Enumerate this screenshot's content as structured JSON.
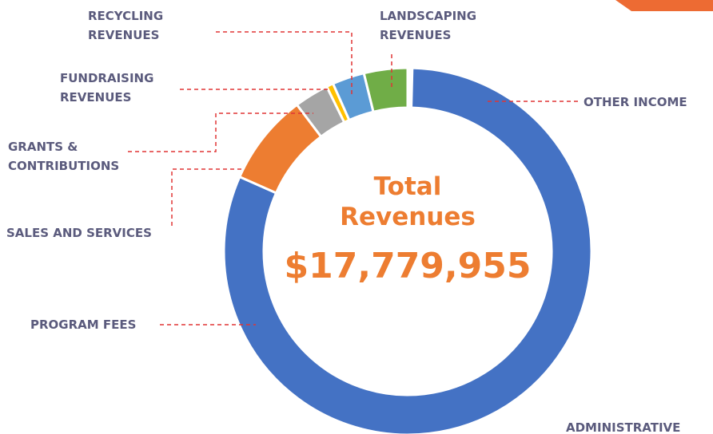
{
  "chart_data": {
    "type": "donut",
    "center_title": "Total Revenues",
    "center_value": "$17,779,955",
    "categories": [
      "OTHER INCOME",
      "ADMINISTRATIVE",
      "PROGRAM FEES",
      "SALES AND SERVICES",
      "GRANTS & CONTRIBUTIONS",
      "FUNDRAISING REVENUES",
      "RECYCLING REVENUES",
      "LANDSCAPING REVENUES"
    ],
    "values": [
      0.2,
      0.2,
      80.6,
      8,
      3,
      0.6,
      2.8,
      3.8
    ],
    "colors": [
      "#3f5f9f",
      "#6a7fb0",
      "#4472c4",
      "#ed7d31",
      "#a5a5a5",
      "#ffc000",
      "#5b9bd5",
      "#70ad47"
    ]
  }
}
